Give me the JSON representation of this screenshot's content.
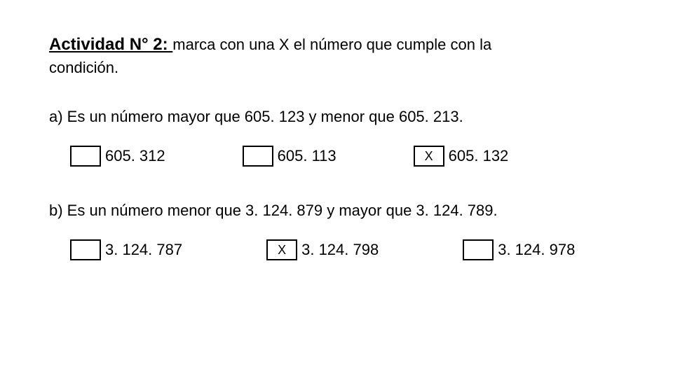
{
  "title_bold": "Actividad N° 2: ",
  "title_rest": "marca con una X el número que cumple con la",
  "title_cont": "condición.",
  "question_a": "a) Es un número mayor que 605. 123 y menor que 605. 213.",
  "options_a": {
    "o1": {
      "mark": "",
      "label": "605. 312"
    },
    "o2": {
      "mark": "",
      "label": "605. 113"
    },
    "o3": {
      "mark": "X",
      "label": "605. 132"
    }
  },
  "question_b": "b) Es un número menor que 3. 124. 879 y mayor que 3. 124. 789.",
  "options_b": {
    "o1": {
      "mark": "",
      "label": "3. 124. 787"
    },
    "o2": {
      "mark": "X",
      "label": "3. 124. 798"
    },
    "o3": {
      "mark": "",
      "label": "3. 124. 978"
    }
  },
  "colors": {
    "background": "#ffffff",
    "text": "#000000",
    "box_border": "#000000"
  },
  "fonts": {
    "family": "Arial",
    "title_size_pt": 18,
    "body_size_pt": 16
  }
}
